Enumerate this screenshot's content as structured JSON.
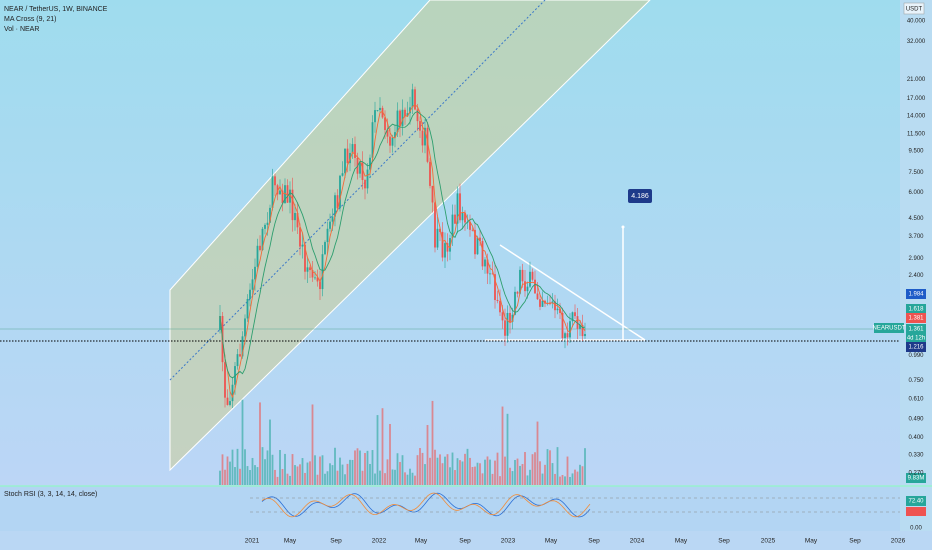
{
  "header": {
    "symbol": "NEAR / TetherUS, 1W, BINANCE",
    "indicator": "MA Cross (9, 21)",
    "volume": "Vol · NEAR",
    "currency": "USDT"
  },
  "price_axis": [
    "40.000",
    "32.000",
    "21.000",
    "17.000",
    "14.000",
    "11.500",
    "9.500",
    "7.500",
    "6.000",
    "4.500",
    "3.700",
    "2.900",
    "2.400",
    "0.990",
    "0.750",
    "0.610",
    "0.490",
    "0.400",
    "0.330",
    "0.270"
  ],
  "price_tags": {
    "level_1": "1.984",
    "ma_slow": "1.618",
    "ma_fast": "1.381",
    "symbol": "NEARUSDT",
    "last": "1.361",
    "countdown": "4d 12h",
    "level_2": "1.216",
    "volume": "9.83M"
  },
  "annotation": "4.186",
  "stoch": {
    "title": "Stoch RSI (3, 3, 14, 14, close)",
    "k": "72.40",
    "zero": "0.00"
  },
  "time_axis": [
    "2021",
    "May",
    "Sep",
    "2022",
    "May",
    "Sep",
    "2023",
    "May",
    "Sep",
    "2024",
    "May",
    "Sep",
    "2025",
    "May",
    "Sep",
    "2026"
  ]
}
